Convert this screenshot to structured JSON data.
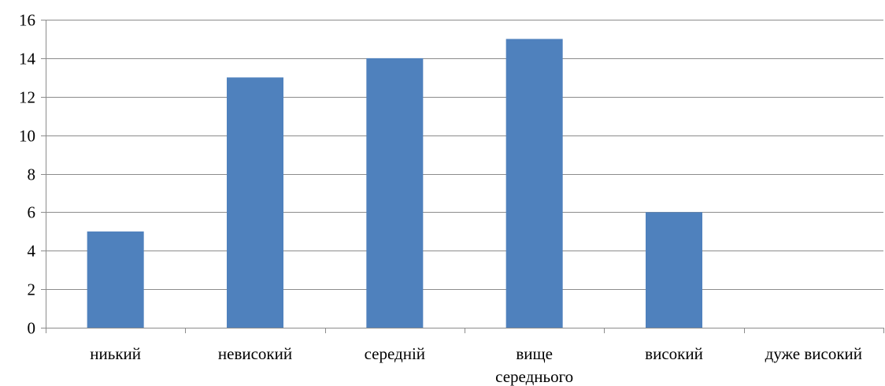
{
  "chart_data": {
    "type": "bar",
    "title": "",
    "xlabel": "",
    "ylabel": "",
    "categories": [
      "ниький",
      "невисокий",
      "середній",
      "вище середнього",
      "високий",
      "дуже високий"
    ],
    "category_lines": [
      [
        "ниький"
      ],
      [
        "невисокий"
      ],
      [
        "середній"
      ],
      [
        "вище",
        "середнього"
      ],
      [
        "високий"
      ],
      [
        "дуже високий"
      ]
    ],
    "values": [
      5,
      13,
      14,
      15,
      6,
      0
    ],
    "ylim": [
      0,
      16
    ],
    "yticks": [
      "0",
      "2",
      "4",
      "6",
      "8",
      "10",
      "12",
      "14",
      "16"
    ],
    "grid": true,
    "legend": "none",
    "bar_color": "#4f81bd",
    "grid_color": "#8c8c8c"
  }
}
